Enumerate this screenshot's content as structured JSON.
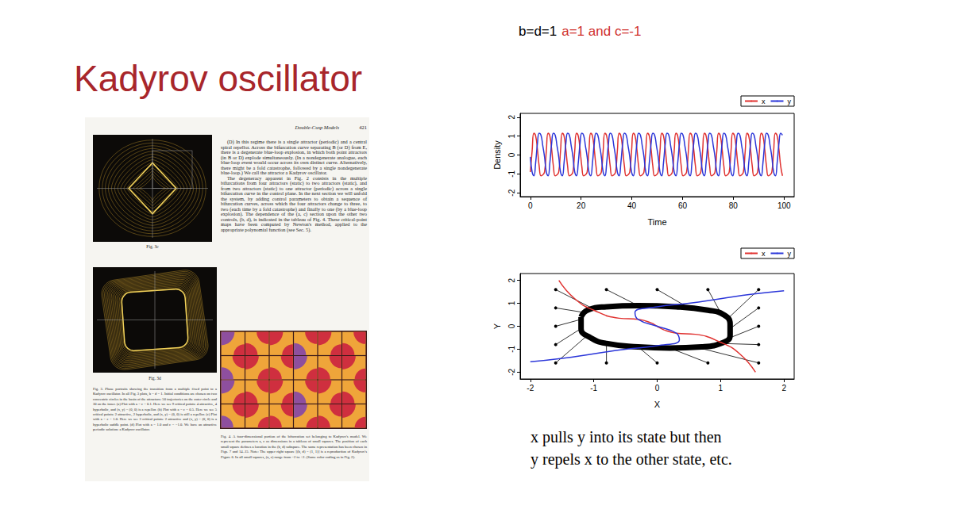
{
  "slide": {
    "title": "Kadyrov oscillator",
    "parameters": [
      {
        "text": "b=d=1",
        "color": "#000000"
      },
      {
        "text": "a=1 and c=-1",
        "color": "#d0312d"
      }
    ],
    "caption": [
      "x pulls y into its state but then",
      "y repels x to the other state, etc."
    ]
  },
  "paper": {
    "header": {
      "running_title": "Double-Cusp Models",
      "page": "421"
    },
    "paragraphs": [
      "(D) In this regime there is a single attractor (periodic) and a central spiral repellor. Across the bifurcation curve separating B (or D) from E, there is a degenerate blue-loop explosion, in which both point attractors (in B or D) explode simultaneously. (In a nondegenerate analogue, each blue-loop event would occur across its own distinct curve. Alternatively, there might be a fold catastrophe, followed by a single nondegenerate blue-loop.) We call the attractor a Kadyrov oscillator.",
      "The degeneracy apparent in Fig. 2 consists in the multiple bifurcations from four attractors (static) to two attractors (static), and from two attractors (static) to one attractor (periodic) across a single bifurcation curve in the control plane. In the next section we will unfold the system, by adding control parameters to obtain a sequence of bifurcation curves, across which the four attractors change to three, to two (each time by a fold catastrophe) and finally to one (by a blue-loop explosion). The dependence of the (a, c) section upon the other two controls, (b, d), is indicated in the tableau of Fig. 4. These critical-point maps have been computed by Newton's method, applied to the appropriate polynomial function (see Sec. 5)."
    ],
    "figure_labels": [
      "Fig. 3c",
      "Fig. 3d"
    ],
    "fig3_caption": "Fig. 3. Phase portraits showing the transition from a multiple fixed point to a Kadyrov oscillator. In all Fig. 3 plots, b = d = 1. Initial conditions are chosen on two concentric circles in the basin of the attractors: 50 trajectories on the outer circle and 30 on the inner. (a) Plot with a = c = 0.1. Here we see 9 critical points: 4 attractive, 4 hyperbolic, and (x, y) = (0, 0) is a repellor. (b) Plot with a = c = 0.5. Here we see 5 critical points: 2 attractive, 2 hyperbolic, and (x, y) = (0, 0) is still a repellor. (c) Plot with a = c = 1.0. Here we see 3 critical points: 2 attractive and (x, y) = (0, 0) is a hyperbolic saddle point. (d) Plot with a = 1.0 and c = −1.0. We have an attractive periodic solution: a Kadyrov oscillator.",
    "fig4_caption": "Fig. 4. A four-dimensional portion of the bifurcation set belonging to Kadyrov's model. We represent the parameters a, c as dimensions in a tableau of small squares. The position of each small square defines a location in the (b, d) subspace. The same representation has been chosen in Figs. 7 and 14–15. Note: The upper right square [(b, d) = (1, 1)] is a reproduction of Kadyrov's Figure 6. In all small squares, (a, c) range from −2 to +2. (Same color coding as in Fig. 2)."
  },
  "chart_data": [
    {
      "type": "line",
      "xlabel": "Time",
      "ylabel": "Density",
      "xlim": [
        -4,
        104
      ],
      "ylim": [
        -2.2,
        2.2
      ],
      "xticks": [
        0,
        20,
        40,
        60,
        80,
        100
      ],
      "yticks": [
        -2,
        -1,
        0,
        1,
        2
      ],
      "grid": false,
      "legend": "top-right",
      "x": [
        0,
        0.7,
        1.4,
        2.1,
        2.8,
        3.5,
        4.2,
        4.9,
        5.6,
        6.3,
        7,
        7.7,
        8.4,
        9.1,
        9.8,
        10.5,
        11.2,
        11.9,
        12.6,
        13.3,
        14,
        14.7,
        15.4,
        16.1,
        16.8,
        17.5,
        18.2,
        18.9,
        19.6,
        20.3,
        21,
        21.7,
        22.4,
        23.1,
        23.8,
        24.5,
        25.2,
        25.9,
        26.6,
        27.3,
        28,
        28.7,
        29.4,
        30.1,
        30.8,
        31.5,
        32.2,
        32.9,
        33.6,
        34.3,
        35,
        35.7,
        36.4,
        37.1,
        37.8,
        38.5,
        39.2,
        39.9,
        40.6,
        41.3,
        42,
        42.7,
        43.4,
        44.1,
        44.8,
        45.5,
        46.2,
        46.9,
        47.6,
        48.3,
        49,
        49.7,
        50.4,
        51.1,
        51.8,
        52.5,
        53.2,
        53.9,
        54.6,
        55.3,
        56,
        56.7,
        57.4,
        58.1,
        58.8,
        59.5,
        60.2,
        60.9,
        61.6,
        62.3,
        63,
        63.7,
        64.4,
        65.1,
        65.8,
        66.5,
        67.2,
        67.9,
        68.6,
        69.3,
        70,
        70.7,
        71.4,
        72.1,
        72.8,
        73.5,
        74.2,
        74.9,
        75.6,
        76.3,
        77,
        77.7,
        78.4,
        79.1,
        79.8,
        80.5,
        81.2,
        81.9,
        82.6,
        83.3,
        84,
        84.7,
        85.4,
        86.1,
        86.8,
        87.5,
        88.2,
        88.9,
        89.6,
        90.3,
        91,
        91.7,
        92.4,
        93.1,
        93.8,
        94.5,
        95.2,
        95.9,
        96.6,
        97.3,
        98,
        98.7,
        99.4
      ],
      "series": [
        {
          "name": "x",
          "color": "#e0312f",
          "values": [
            -0.9,
            0.2,
            1.15,
            1,
            0.3,
            -0.6,
            -1.1,
            -1.05,
            -0.9,
            0.2,
            1.15,
            1,
            0.3,
            -0.6,
            -1.1,
            -1.05,
            -0.9,
            0.2,
            1.15,
            1,
            0.3,
            -0.6,
            -1.1,
            -1.05,
            -0.9,
            0.2,
            1.15,
            1,
            0.3,
            -0.6,
            -1.1,
            -1.05,
            -0.9,
            0.2,
            1.15,
            1,
            0.3,
            -0.6,
            -1.1,
            -1.05,
            -0.9,
            0.2,
            1.15,
            1,
            0.3,
            -0.6,
            -1.1,
            -1.05,
            -0.9,
            0.2,
            1.15,
            1,
            0.3,
            -0.6,
            -1.1,
            -1.05,
            -0.9,
            0.2,
            1.15,
            1,
            0.3,
            -0.6,
            -1.1,
            -1.05,
            -0.9,
            0.2,
            1.15,
            1,
            0.3,
            -0.6,
            -1.1,
            -1.05,
            -0.9,
            0.2,
            1.15,
            1,
            0.3,
            -0.6,
            -1.1,
            -1.05,
            -0.9,
            0.2,
            1.15,
            1,
            0.3,
            -0.6,
            -1.1,
            -1.05,
            -0.9,
            0.2,
            1.15,
            1,
            0.3,
            -0.6,
            -1.1,
            -1.05,
            -0.9,
            0.2,
            1.15,
            1,
            0.3,
            -0.6,
            -1.1,
            -1.05,
            -0.9,
            0.2,
            1.15,
            1,
            0.3,
            -0.6,
            -1.1,
            -1.05,
            -0.9,
            0.2,
            1.15,
            1,
            0.3,
            -0.6,
            -1.1,
            -1.05,
            -0.9,
            0.2,
            1.15,
            1,
            0.3,
            -0.6,
            -1.1,
            -1.05,
            -0.9,
            0.2,
            1.15,
            1,
            0.3,
            -0.6,
            -1.1,
            -1.05,
            -0.9,
            0.2,
            1.15,
            1,
            0.3,
            -0.6,
            -1.1
          ]
        },
        {
          "name": "y",
          "color": "#2b36d9",
          "values": [
            -0.1,
            -0.9,
            -1.1,
            -0.4,
            0.6,
            1.15,
            1.05,
            0.5,
            -0.1,
            -0.9,
            -1.1,
            -0.4,
            0.6,
            1.15,
            1.05,
            0.5,
            -0.1,
            -0.9,
            -1.1,
            -0.4,
            0.6,
            1.15,
            1.05,
            0.5,
            -0.1,
            -0.9,
            -1.1,
            -0.4,
            0.6,
            1.15,
            1.05,
            0.5,
            -0.1,
            -0.9,
            -1.1,
            -0.4,
            0.6,
            1.15,
            1.05,
            0.5,
            -0.1,
            -0.9,
            -1.1,
            -0.4,
            0.6,
            1.15,
            1.05,
            0.5,
            -0.1,
            -0.9,
            -1.1,
            -0.4,
            0.6,
            1.15,
            1.05,
            0.5,
            -0.1,
            -0.9,
            -1.1,
            -0.4,
            0.6,
            1.15,
            1.05,
            0.5,
            -0.1,
            -0.9,
            -1.1,
            -0.4,
            0.6,
            1.15,
            1.05,
            0.5,
            -0.1,
            -0.9,
            -1.1,
            -0.4,
            0.6,
            1.15,
            1.05,
            0.5,
            -0.1,
            -0.9,
            -1.1,
            -0.4,
            0.6,
            1.15,
            1.05,
            0.5,
            -0.1,
            -0.9,
            -1.1,
            -0.4,
            0.6,
            1.15,
            1.05,
            0.5,
            -0.1,
            -0.9,
            -1.1,
            -0.4,
            0.6,
            1.15,
            1.05,
            0.5,
            -0.1,
            -0.9,
            -1.1,
            -0.4,
            0.6,
            1.15,
            1.05,
            0.5,
            -0.1,
            -0.9,
            -1.1,
            -0.4,
            0.6,
            1.15,
            1.05,
            0.5,
            -0.1,
            -0.9,
            -1.1,
            -0.4,
            0.6,
            1.15,
            1.05,
            0.5,
            -0.1,
            -0.9,
            -1.1,
            -0.4,
            0.6,
            1.15,
            1.05,
            0.5,
            -0.1,
            -0.9,
            -1.1,
            -0.4,
            0.6,
            1.15,
            1.05
          ]
        }
      ]
    },
    {
      "type": "line",
      "xlabel": "X",
      "ylabel": "Y",
      "xlim": [
        -2.16,
        2.16
      ],
      "ylim": [
        -2.3,
        2.3
      ],
      "xticks": [
        -2,
        -1,
        0,
        1,
        2
      ],
      "yticks": [
        -2,
        -1,
        0,
        1,
        2
      ],
      "grid": false,
      "legend": "top-right",
      "series": [
        {
          "name": "x",
          "color": "#e0312f",
          "points": [
            [
              -1.55,
              2
            ],
            [
              -1.3,
              1.2
            ],
            [
              -1,
              0.7
            ],
            [
              -0.6,
              0.35
            ],
            [
              -0.3,
              0.3
            ],
            [
              -0.1,
              0.15
            ],
            [
              0,
              0
            ],
            [
              0.1,
              -0.15
            ],
            [
              0.3,
              -0.3
            ],
            [
              0.6,
              -0.35
            ],
            [
              1,
              -0.7
            ],
            [
              1.3,
              -1.2
            ],
            [
              1.55,
              -2
            ]
          ]
        },
        {
          "name": "y",
          "color": "#2b36d9",
          "points": [
            [
              -2,
              -1.55
            ],
            [
              -1.5,
              -1.4
            ],
            [
              -1,
              -1.2
            ],
            [
              -0.5,
              -1
            ],
            [
              0,
              -0.85
            ],
            [
              0.35,
              -0.6
            ],
            [
              0.3,
              -0.3
            ],
            [
              0,
              0
            ],
            [
              -0.3,
              0.3
            ],
            [
              -0.35,
              0.6
            ],
            [
              0,
              0.85
            ],
            [
              0.5,
              1
            ],
            [
              1,
              1.2
            ],
            [
              1.5,
              1.4
            ],
            [
              2,
              1.55
            ]
          ]
        }
      ],
      "limit_cycle": {
        "color": "#000000",
        "points": [
          [
            -1.2,
            0.4
          ],
          [
            -1.1,
            0.7
          ],
          [
            -0.8,
            0.85
          ],
          [
            -0.3,
            0.9
          ],
          [
            0.3,
            0.85
          ],
          [
            0.8,
            0.7
          ],
          [
            1.05,
            0.5
          ],
          [
            1.15,
            0.1
          ],
          [
            1.15,
            -0.4
          ],
          [
            1.05,
            -0.7
          ],
          [
            0.7,
            -0.9
          ],
          [
            0.2,
            -0.95
          ],
          [
            -0.3,
            -0.9
          ],
          [
            -0.8,
            -0.75
          ],
          [
            -1.05,
            -0.5
          ],
          [
            -1.2,
            -0.1
          ],
          [
            -1.2,
            0.4
          ]
        ]
      },
      "trajectories": {
        "color": "#000000",
        "marker": "circle",
        "paths": [
          [
            [
              -1.6,
              1.6
            ],
            [
              -1,
              0.75
            ]
          ],
          [
            [
              -0.8,
              1.6
            ],
            [
              -0.3,
              0.9
            ]
          ],
          [
            [
              0,
              1.6
            ],
            [
              0.5,
              0.8
            ]
          ],
          [
            [
              0.8,
              1.6
            ],
            [
              1,
              0.6
            ]
          ],
          [
            [
              1.6,
              1.6
            ],
            [
              1.1,
              0.3
            ]
          ],
          [
            [
              1.6,
              0.8
            ],
            [
              1.15,
              -0.1
            ]
          ],
          [
            [
              1.6,
              0
            ],
            [
              1.15,
              -0.5
            ]
          ],
          [
            [
              1.6,
              -0.8
            ],
            [
              1,
              -0.75
            ]
          ],
          [
            [
              1.6,
              -1.6
            ],
            [
              0.6,
              -0.9
            ]
          ],
          [
            [
              0.8,
              -1.6
            ],
            [
              0.2,
              -0.95
            ]
          ],
          [
            [
              0,
              -1.6
            ],
            [
              -0.3,
              -0.9
            ]
          ],
          [
            [
              -0.8,
              -1.6
            ],
            [
              -0.8,
              -0.75
            ]
          ],
          [
            [
              -1.6,
              -1.6
            ],
            [
              -1.1,
              -0.4
            ]
          ],
          [
            [
              -1.6,
              -0.8
            ],
            [
              -1.2,
              -0.1
            ]
          ],
          [
            [
              -1.6,
              0
            ],
            [
              -1.2,
              0.3
            ]
          ],
          [
            [
              -1.6,
              0.8
            ],
            [
              -1.15,
              0.6
            ]
          ]
        ]
      }
    }
  ]
}
